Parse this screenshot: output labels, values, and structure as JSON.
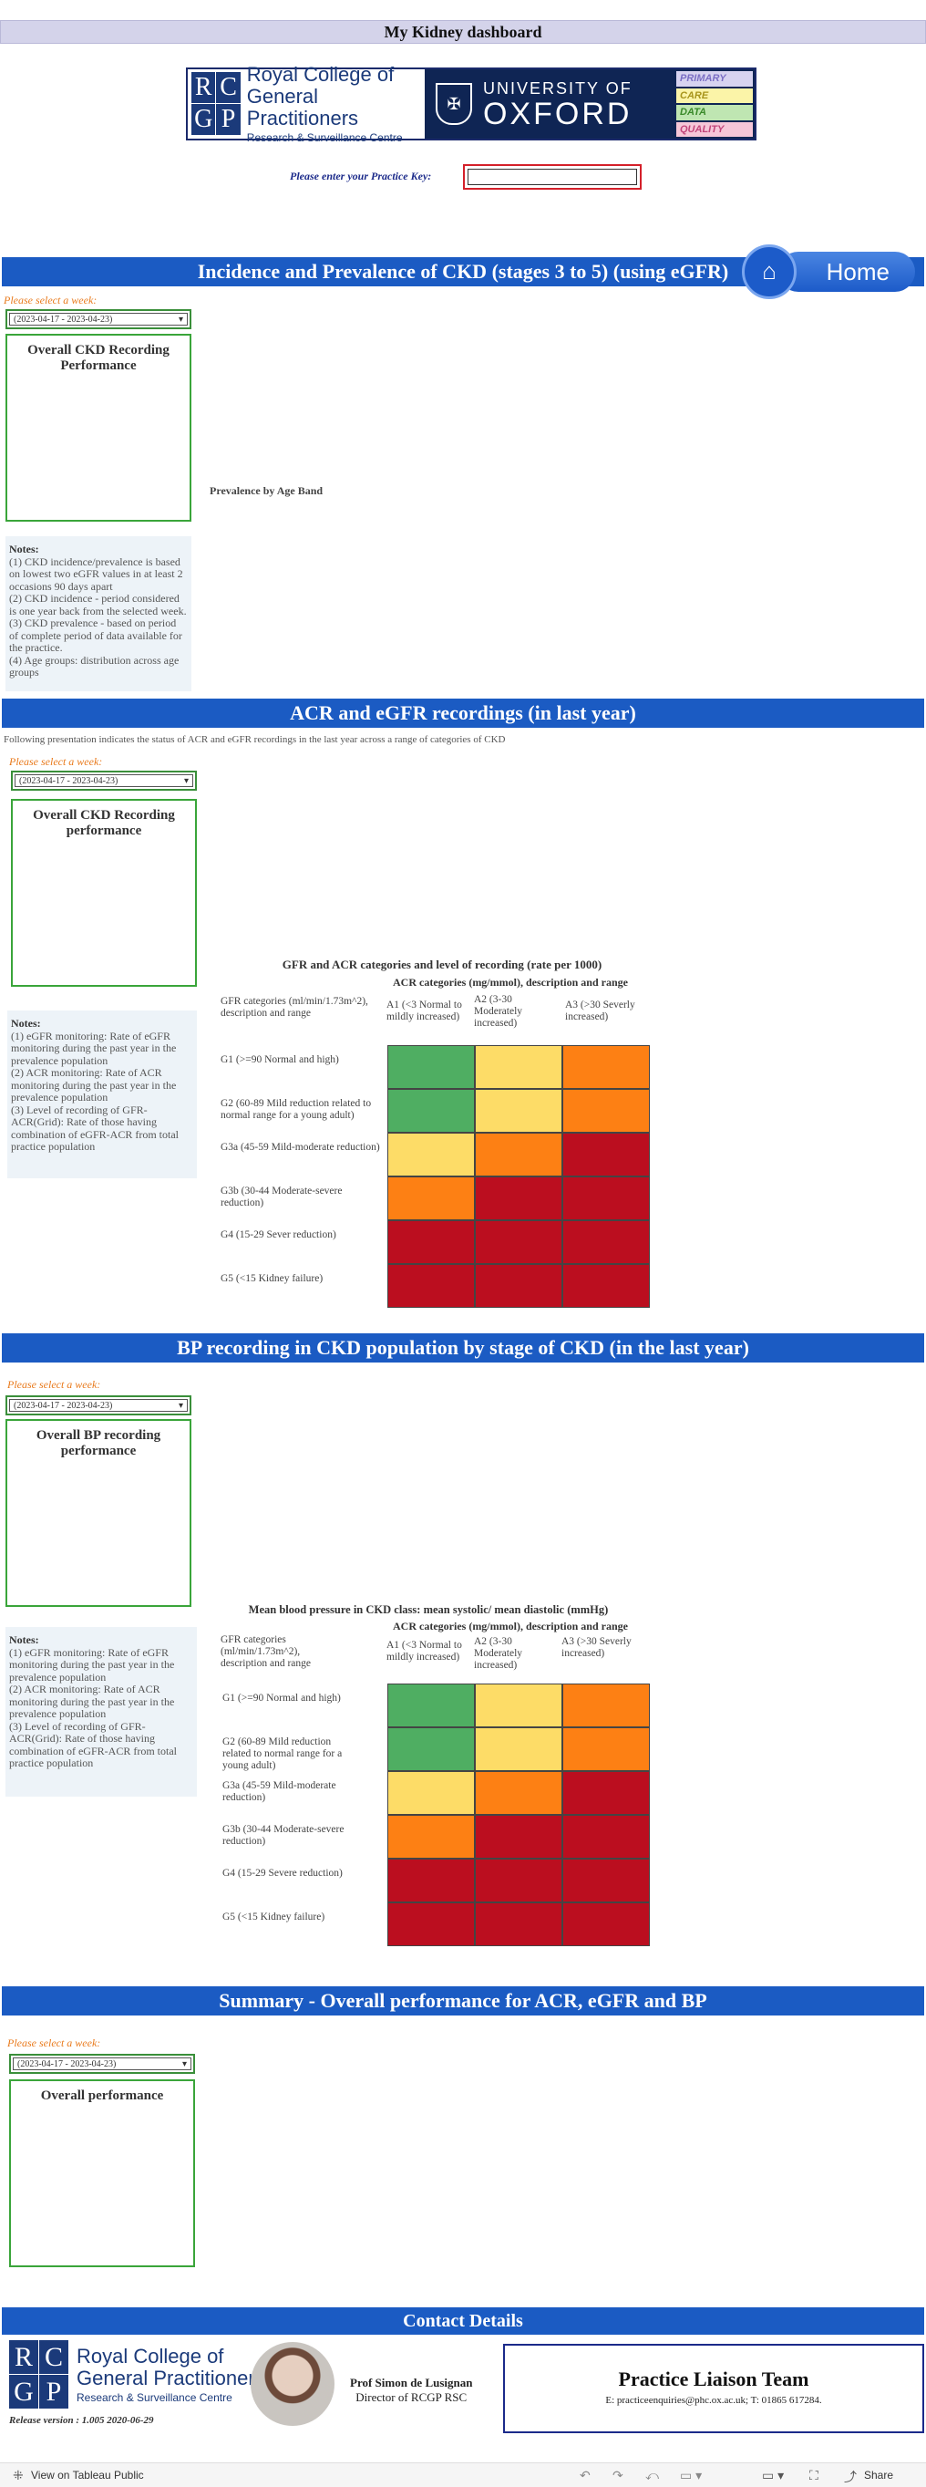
{
  "title": "My Kidney dashboard",
  "logos": {
    "rcgp_mark": [
      "R",
      "C",
      "G",
      "P"
    ],
    "rcgp_line1": "Royal College of",
    "rcgp_line2": "General Practitioners",
    "rcgp_line3": "Research & Surveillance Centre",
    "oxford_line1": "UNIVERSITY OF",
    "oxford_line2": "OXFORD",
    "pcdq": [
      {
        "label": "PRIMARY",
        "bg": "#d7d3f0",
        "fg": "#7b6fc4"
      },
      {
        "label": "CARE",
        "bg": "#fbf4a8",
        "fg": "#a8951c"
      },
      {
        "label": "DATA",
        "bg": "#bfe6b2",
        "fg": "#3a8a2a"
      },
      {
        "label": "QUALITY",
        "bg": "#f6c6d8",
        "fg": "#c2457a"
      }
    ]
  },
  "practice_key": {
    "label": "Please enter your Practice Key:",
    "value": ""
  },
  "home_label": "Home",
  "week_value": "(2023-04-17 - 2023-04-23)",
  "select_week_label": "Please select a week:",
  "section1": {
    "header": "Incidence and Prevalence of CKD (stages 3 to 5) (using eGFR)",
    "perf_title": "Overall CKD Recording Performance",
    "age_band_label": "Prevalence by Age Band",
    "notes_title": "Notes:",
    "notes": [
      "(1) CKD incidence/prevalence is based on lowest two eGFR values in at least 2 occasions 90 days apart",
      "(2) CKD incidence - period considered is one year back from the selected week.",
      "(3) CKD prevalence - based on period of complete period of data available for the practice.",
      "(4)  Age groups: distribution across age groups"
    ]
  },
  "section2": {
    "header": "ACR and eGFR recordings (in last year)",
    "intro": "Following presentation indicates the status of ACR and eGFR recordings in the last year across a range of categories of CKD",
    "perf_title": "Overall CKD Recording performance",
    "grid_title": "GFR and ACR categories and level of recording (rate per 1000)",
    "grid_subtitle": "ACR categories (mg/mmol), description and range",
    "gfr_header": "GFR categories (ml/min/1.73m^2), description and range",
    "notes_title": "Notes:",
    "notes": [
      "(1) eGFR monitoring: Rate of eGFR monitoring during the past year in the prevalence population",
      "(2) ACR monitoring: Rate of ACR monitoring during the past year in the prevalence population",
      "(3) Level of recording of GFR-ACR(Grid): Rate of those having combination of eGFR-ACR from total practice population"
    ]
  },
  "section3": {
    "header": "BP recording in CKD population by stage of CKD (in the last year)",
    "perf_title": "Overall BP recording performance",
    "grid_title": "Mean blood pressure in CKD class: mean systolic/ mean diastolic (mmHg)",
    "grid_subtitle": "ACR categories (mg/mmol), description and range",
    "gfr_header": "GFR categories (ml/min/1.73m^2), description and range",
    "notes_title": "Notes:",
    "notes": [
      "(1) eGFR monitoring: Rate of eGFR monitoring during the past year in the prevalence population",
      "(2) ACR monitoring: Rate of ACR monitoring during the past year in the prevalence population",
      "(3) Level of recording of GFR-ACR(Grid): Rate of those having combination of eGFR-ACR from total practice population"
    ]
  },
  "acr_columns": [
    "A1 (<3 Normal to mildly increased)",
    "A2 (3-30 Moderately increased)",
    "A3 (>30 Severly increased)"
  ],
  "grid_rows_s2": [
    "G1 (>=90 Normal and high)",
    "G2 (60-89 Mild reduction related to normal range for a young adult)",
    "G3a (45-59 Mild-moderate reduction)",
    "G3b (30-44 Moderate-severe reduction)",
    "G4 (15-29 Sever reduction)",
    "G5 (<15 Kidney failure)"
  ],
  "grid_rows_s3": [
    "G1 (>=90 Normal and high)",
    "G2 (60-89 Mild reduction related to normal range for a young adult)",
    "G3a (45-59 Mild-moderate reduction)",
    "G3b (30-44 Moderate-severe reduction)",
    "G4 (15-29 Severe reduction)",
    "G5 (<15 Kidney failure)"
  ],
  "risk_colors": {
    "green": "#4fae62",
    "yellow": "#fddc67",
    "orange": "#fd8014",
    "red": "#bb0e1f"
  },
  "risk_grid": [
    [
      "green",
      "yellow",
      "orange"
    ],
    [
      "green",
      "yellow",
      "orange"
    ],
    [
      "yellow",
      "orange",
      "red"
    ],
    [
      "orange",
      "red",
      "red"
    ],
    [
      "red",
      "red",
      "red"
    ],
    [
      "red",
      "red",
      "red"
    ]
  ],
  "section4": {
    "header": "Summary - Overall performance for ACR, eGFR and BP",
    "perf_title": "Overall performance"
  },
  "contact": {
    "header": "Contact Details",
    "prof_name": "Prof Simon de Lusignan",
    "prof_role": "Director of RCGP RSC",
    "team": "Practice Liaison Team",
    "email_line": "E: practiceenquiries@phc.ox.ac.uk; T: 01865 617284.",
    "release": "Release version : 1.005 2020-06-29"
  },
  "toolbar": {
    "view_label": "View on Tableau Public",
    "share_label": "Share"
  }
}
